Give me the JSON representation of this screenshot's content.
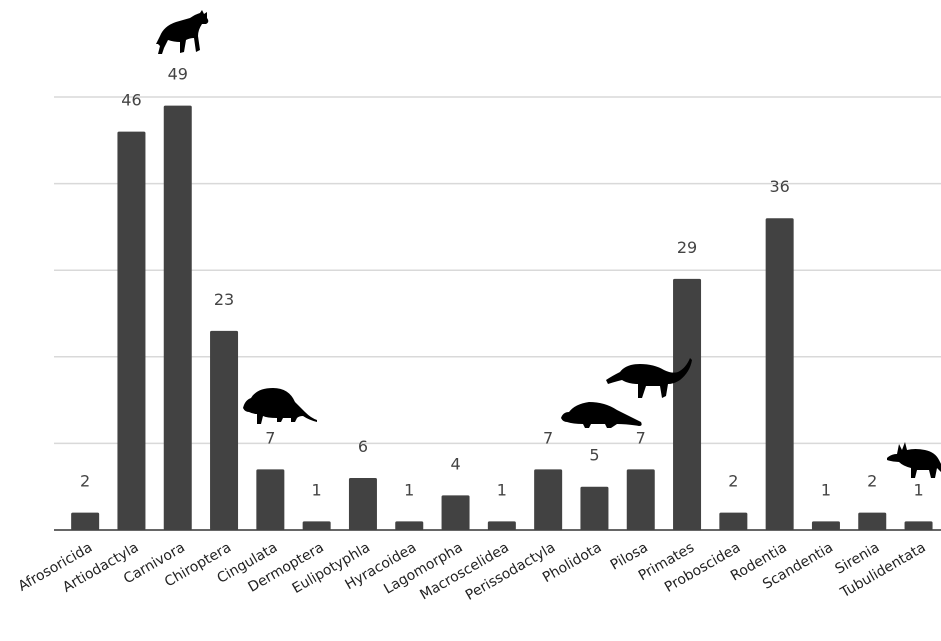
{
  "chart_data": {
    "type": "bar",
    "categories": [
      "Afrosoricida",
      "Artiodactyla",
      "Carnivora",
      "Chiroptera",
      "Cingulata",
      "Dermoptera",
      "Eulipotyphla",
      "Hyracoidea",
      "Lagomorpha",
      "Macroscelidea",
      "Perissodactyla",
      "Pholidota",
      "Pilosa",
      "Primates",
      "Proboscidea",
      "Rodentia",
      "Scandentia",
      "Sirenia",
      "Tubulidentata"
    ],
    "values": [
      2,
      46,
      49,
      23,
      7,
      1,
      6,
      1,
      4,
      1,
      7,
      5,
      7,
      29,
      2,
      36,
      1,
      2,
      1
    ],
    "data_labels": [
      "2",
      "46",
      "49",
      "23",
      "7",
      "1",
      "6",
      "1",
      "4",
      "1",
      "7",
      "5",
      "7",
      "29",
      "2",
      "36",
      "1",
      "2",
      "1"
    ],
    "ylim": [
      0,
      50
    ],
    "y_gridlines": [
      10,
      20,
      30,
      40,
      50
    ],
    "y_tick_labels_shown": false,
    "bar_color": "#424242",
    "grid_color": "#d9d9d9",
    "grid": true,
    "legend": "none",
    "silhouettes": [
      {
        "icon": "hyena-silhouette-icon",
        "category": "Carnivora"
      },
      {
        "icon": "armadillo-silhouette-icon",
        "category": "Cingulata"
      },
      {
        "icon": "pangolin-silhouette-icon",
        "category": "Pholidota"
      },
      {
        "icon": "anteater-silhouette-icon",
        "category": "Pilosa"
      },
      {
        "icon": "aardvark-silhouette-icon",
        "category": "Tubulidentata"
      }
    ]
  }
}
